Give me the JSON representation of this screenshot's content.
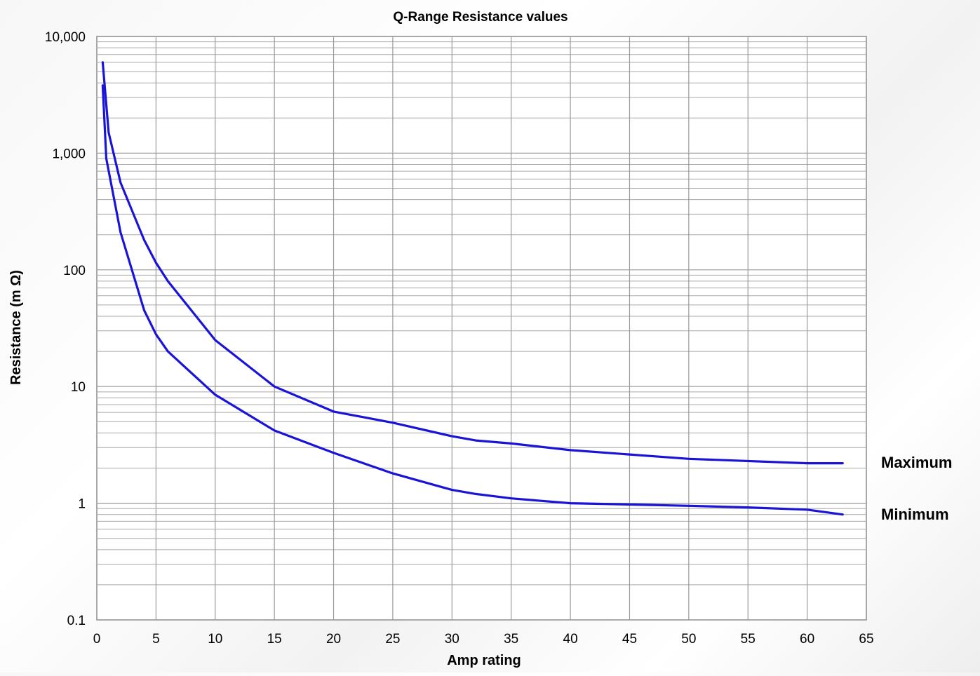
{
  "chart_data": {
    "type": "line",
    "title": "Q-Range Resistance values",
    "xlabel": "Amp rating",
    "ylabel": "Resistance (m Ω)",
    "xlim": [
      0,
      65
    ],
    "ylim": [
      0.1,
      10000
    ],
    "yscale": "log",
    "grid": true,
    "x_ticks": [
      "0",
      "5",
      "10",
      "15",
      "20",
      "25",
      "30",
      "35",
      "40",
      "45",
      "50",
      "55",
      "60",
      "65"
    ],
    "y_ticks": [
      "0.1",
      "1",
      "10",
      "100",
      "1,000",
      "10,000"
    ],
    "series": [
      {
        "name": "Maximum",
        "color": "#1a14d6",
        "points": [
          [
            0.5,
            6000
          ],
          [
            1,
            1500
          ],
          [
            2,
            560
          ],
          [
            4,
            180
          ],
          [
            5,
            115
          ],
          [
            6,
            80
          ],
          [
            10,
            25
          ],
          [
            15,
            10
          ],
          [
            20,
            6.1
          ],
          [
            25,
            4.9
          ],
          [
            30,
            3.75
          ],
          [
            32,
            3.45
          ],
          [
            35,
            3.25
          ],
          [
            40,
            2.85
          ],
          [
            50,
            2.4
          ],
          [
            60,
            2.2
          ],
          [
            63,
            2.2
          ]
        ]
      },
      {
        "name": "Minimum",
        "color": "#1a14d6",
        "points": [
          [
            0.5,
            3800
          ],
          [
            0.8,
            900
          ],
          [
            2,
            210
          ],
          [
            4,
            45
          ],
          [
            5,
            28
          ],
          [
            6,
            20
          ],
          [
            10,
            8.5
          ],
          [
            15,
            4.2
          ],
          [
            20,
            2.7
          ],
          [
            25,
            1.8
          ],
          [
            30,
            1.3
          ],
          [
            32,
            1.2
          ],
          [
            35,
            1.1
          ],
          [
            40,
            1.0
          ],
          [
            50,
            0.95
          ],
          [
            55,
            0.92
          ],
          [
            60,
            0.88
          ],
          [
            63,
            0.8
          ]
        ]
      }
    ]
  }
}
